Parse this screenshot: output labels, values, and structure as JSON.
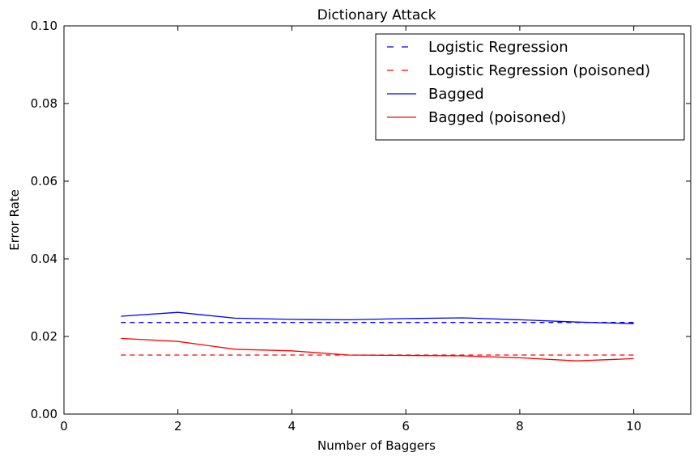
{
  "chart_data": {
    "type": "line",
    "title": "Dictionary Attack",
    "xlabel": "Number of Baggers",
    "ylabel": "Error Rate",
    "xlim": [
      0,
      11
    ],
    "ylim": [
      0.0,
      0.1
    ],
    "xticks": [
      0,
      2,
      4,
      6,
      8,
      10
    ],
    "xtick_labels": [
      "0",
      "2",
      "4",
      "6",
      "8",
      "10"
    ],
    "yticks": [
      0.0,
      0.02,
      0.04,
      0.06,
      0.08,
      0.1
    ],
    "ytick_labels": [
      "0.00",
      "0.02",
      "0.04",
      "0.06",
      "0.08",
      "0.10"
    ],
    "grid": false,
    "legend_position": "top-right",
    "x": [
      1,
      2,
      3,
      4,
      5,
      6,
      7,
      8,
      9,
      10
    ],
    "series": [
      {
        "name": "Logistic Regression",
        "color": "#0000ff",
        "style": "dashed",
        "values": [
          0.0236,
          0.0236,
          0.0236,
          0.0236,
          0.0236,
          0.0236,
          0.0236,
          0.0236,
          0.0236,
          0.0236
        ]
      },
      {
        "name": "Logistic Regression (poisoned)",
        "color": "#ff0000",
        "style": "dashed",
        "values": [
          0.0152,
          0.0152,
          0.0152,
          0.0152,
          0.0152,
          0.0152,
          0.0152,
          0.0152,
          0.0152,
          0.0152
        ]
      },
      {
        "name": "Bagged",
        "color": "#0000ff",
        "style": "solid",
        "values": [
          0.0252,
          0.0262,
          0.0247,
          0.0244,
          0.0243,
          0.0246,
          0.0248,
          0.0243,
          0.0237,
          0.0233
        ]
      },
      {
        "name": "Bagged (poisoned)",
        "color": "#ff0000",
        "style": "solid",
        "values": [
          0.0195,
          0.0187,
          0.0167,
          0.0163,
          0.0152,
          0.0151,
          0.015,
          0.0145,
          0.0137,
          0.0143
        ]
      }
    ]
  }
}
